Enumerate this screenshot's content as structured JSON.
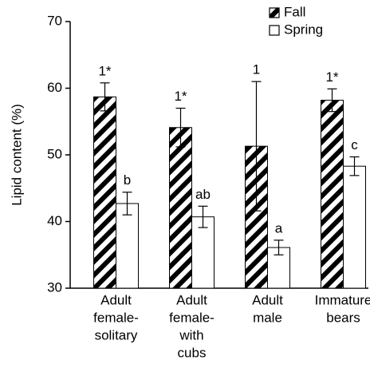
{
  "chart_data": {
    "type": "bar",
    "ylabel": "Lipid content (%)",
    "categories": [
      [
        "Adult",
        "female-",
        "solitary"
      ],
      [
        "Adult",
        "female-",
        "with",
        "cubs"
      ],
      [
        "Adult",
        "male"
      ],
      [
        "Immature",
        "bears"
      ]
    ],
    "series": [
      {
        "name": "Fall",
        "color": "#000000",
        "hatch": true,
        "values": [
          58.7,
          54.1,
          51.3,
          58.2
        ],
        "errors": [
          2.1,
          2.9,
          9.7,
          1.7
        ],
        "annotations": [
          "1*",
          "1*",
          "1",
          "1*"
        ]
      },
      {
        "name": "Spring",
        "color": "#ffffff",
        "hatch": false,
        "values": [
          42.7,
          40.7,
          36.1,
          48.3
        ],
        "errors": [
          1.7,
          1.6,
          1.1,
          1.4
        ],
        "annotations": [
          "b",
          "ab",
          "a",
          "c"
        ]
      }
    ],
    "ylim": [
      30,
      70
    ],
    "yticks": [
      30,
      40,
      50,
      60,
      70
    ],
    "legend": "upper right"
  }
}
